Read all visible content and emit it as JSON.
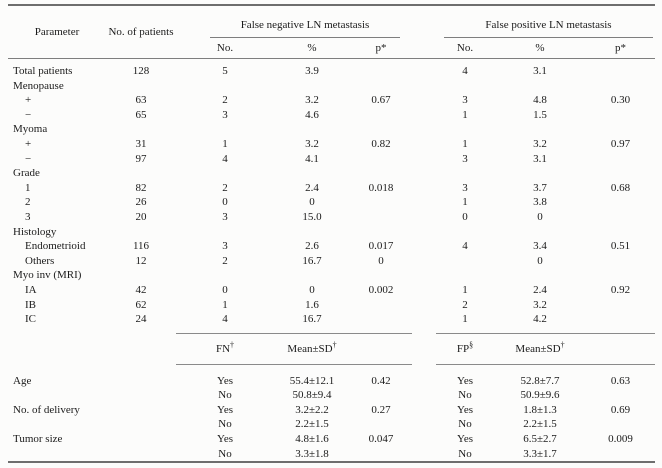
{
  "table": {
    "header": {
      "parameter": "Parameter",
      "patients": "No. of patients",
      "fn_group": "False negative LN metastasis",
      "fp_group": "False positive LN metastasis",
      "sub_no": "No.",
      "sub_pct": "%",
      "sub_p": "p*"
    },
    "rows": [
      {
        "label": "Total patients",
        "indent": false,
        "cells": [
          "128",
          "5",
          "3.9",
          "",
          "4",
          "3.1",
          ""
        ]
      },
      {
        "label": "Menopause",
        "indent": false,
        "cells": [
          "",
          "",
          "",
          "",
          "",
          "",
          ""
        ]
      },
      {
        "label": "+",
        "indent": true,
        "cells": [
          "63",
          "2",
          "3.2",
          "0.67",
          "3",
          "4.8",
          "0.30"
        ]
      },
      {
        "label": "−",
        "indent": true,
        "cells": [
          "65",
          "3",
          "4.6",
          "",
          "1",
          "1.5",
          ""
        ]
      },
      {
        "label": "Myoma",
        "indent": false,
        "cells": [
          "",
          "",
          "",
          "",
          "",
          "",
          ""
        ]
      },
      {
        "label": "+",
        "indent": true,
        "cells": [
          "31",
          "1",
          "3.2",
          "0.82",
          "1",
          "3.2",
          "0.97"
        ]
      },
      {
        "label": "−",
        "indent": true,
        "cells": [
          "97",
          "4",
          "4.1",
          "",
          "3",
          "3.1",
          ""
        ]
      },
      {
        "label": "Grade",
        "indent": false,
        "cells": [
          "",
          "",
          "",
          "",
          "",
          "",
          ""
        ]
      },
      {
        "label": "1",
        "indent": true,
        "cells": [
          "82",
          "2",
          "2.4",
          "0.018",
          "3",
          "3.7",
          "0.68"
        ]
      },
      {
        "label": "2",
        "indent": true,
        "cells": [
          "26",
          "0",
          "0",
          "",
          "1",
          "3.8",
          ""
        ]
      },
      {
        "label": "3",
        "indent": true,
        "cells": [
          "20",
          "3",
          "15.0",
          "",
          "0",
          "0",
          ""
        ]
      },
      {
        "label": "Histology",
        "indent": false,
        "cells": [
          "",
          "",
          "",
          "",
          "",
          "",
          ""
        ]
      },
      {
        "label": "Endometrioid",
        "indent": true,
        "cells": [
          "116",
          "3",
          "2.6",
          "0.017",
          "4",
          "3.4",
          "0.51"
        ]
      },
      {
        "label": "Others",
        "indent": true,
        "cells": [
          "12",
          "2",
          "16.7",
          "0",
          "",
          "0",
          ""
        ]
      },
      {
        "label": "Myo inv (MRI)",
        "indent": false,
        "cells": [
          "",
          "",
          "",
          "",
          "",
          "",
          ""
        ]
      },
      {
        "label": "IA",
        "indent": true,
        "cells": [
          "42",
          "0",
          "0",
          "0.002",
          "1",
          "2.4",
          "0.92"
        ]
      },
      {
        "label": "IB",
        "indent": true,
        "cells": [
          "62",
          "1",
          "1.6",
          "",
          "2",
          "3.2",
          ""
        ]
      },
      {
        "label": "IC",
        "indent": true,
        "cells": [
          "24",
          "4",
          "16.7",
          "",
          "1",
          "4.2",
          ""
        ]
      }
    ],
    "subheader": {
      "fn_label": "FN",
      "fn_sup": "†",
      "fp_label": "FP",
      "fp_sup": "§",
      "mean_label": "Mean±SD",
      "mean_sup": "†"
    },
    "rows2": [
      {
        "label": "Age",
        "cells": [
          "Yes",
          "55.4±12.1",
          "0.42",
          "Yes",
          "52.8±7.7",
          "0.63"
        ]
      },
      {
        "label": "",
        "cells": [
          "No",
          "50.8±9.4",
          "",
          "No",
          "50.9±9.6",
          ""
        ]
      },
      {
        "label": "No. of delivery",
        "cells": [
          "Yes",
          "3.2±2.2",
          "0.27",
          "Yes",
          "1.8±1.3",
          "0.69"
        ]
      },
      {
        "label": "",
        "cells": [
          "No",
          "2.2±1.5",
          "",
          "No",
          "2.2±1.5",
          ""
        ]
      },
      {
        "label": "Tumor size",
        "cells": [
          "Yes",
          "4.8±1.6",
          "0.047",
          "Yes",
          "6.5±2.7",
          "0.009"
        ]
      },
      {
        "label": "",
        "cells": [
          "No",
          "3.3±1.8",
          "",
          "No",
          "3.3±1.7",
          ""
        ]
      }
    ]
  }
}
